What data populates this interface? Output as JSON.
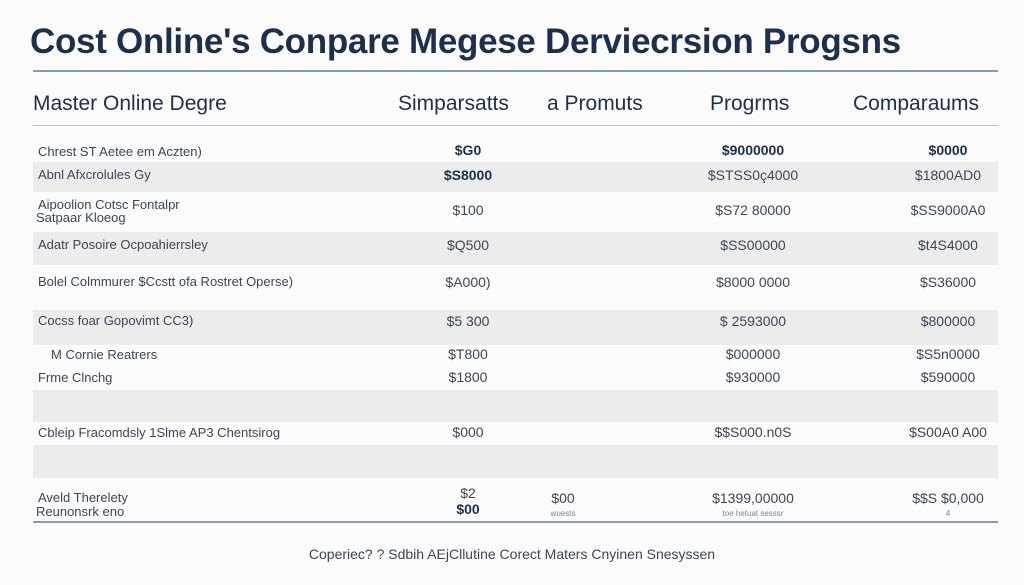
{
  "title": "Cost Online's Conpare Megese Derviecrsion  Progsns",
  "header": [
    "Master Online Degre",
    "Simparsatts",
    "a Promuts",
    "Progrms",
    "Comparaums"
  ],
  "rows": [
    {
      "label": "Chrest ST Aetee em Aczten)",
      "c1": "$G0",
      "c3": "$9000000",
      "c4": "$0000",
      "bold": true,
      "shade": false
    },
    {
      "label": "Abnl Afxcrolules Gy",
      "c1": "$S8000",
      "c3": "$STSS0ç4000",
      "c4": "$1800AD0",
      "shade": true
    },
    {
      "label": "Aipoolion Cotsc Fontalpr",
      "label2": "Satpaar Kloeog",
      "c1": "$100",
      "c3": "$S72 80000",
      "c4": "$SS9000A0",
      "shade": false
    },
    {
      "label": "Adatr Posoire Ocpoahierrsley",
      "c1": "$Q500",
      "c3": "$SS00000",
      "c4": "$t4S4000",
      "shade": true
    },
    {
      "label": "Bolel Colmmurer $Ccstt ofa Rostret Operse)",
      "c1": "$A000)",
      "c3": "$8000 0000",
      "c4": "$S36000",
      "shade": false
    },
    {
      "label": "Cocss foar Gopovimt CC3)",
      "c1": "$5 300",
      "c3": "$ 2593000",
      "c4": "$800000",
      "shade": true
    },
    {
      "label": "M Cornie Reatrers",
      "c1": "$T800",
      "c3": "$000000",
      "c4": "$S5n0000",
      "shade": false
    },
    {
      "label": "Frme Clnchg",
      "c1": "$1800",
      "c3": "$930000",
      "c4": "$590000",
      "shade": false
    },
    {
      "label": "",
      "shade": true
    },
    {
      "label": "Cbleip Fracomdsly 1Slme AP3 Chentsirog",
      "c1": "$000",
      "c3": "$$S000.n0S",
      "c4": "$S00A0 A00",
      "shade": false
    },
    {
      "label": "",
      "shade": true
    },
    {
      "label": "Aveld Therelety",
      "label2": "Reunonsrk eno",
      "c1": "$2",
      "c1b": "$00",
      "c2": "$00",
      "c2sub": "wuests",
      "c3": "$1399,00000",
      "c3sub": "toe hetuat sesssr",
      "c4": "$$S $0,000",
      "c4sub": "4",
      "shade": false
    }
  ],
  "footer": "Coperiec? ? Sdbih AEjCllutine Corect Maters Cnyinen Snesyssen"
}
